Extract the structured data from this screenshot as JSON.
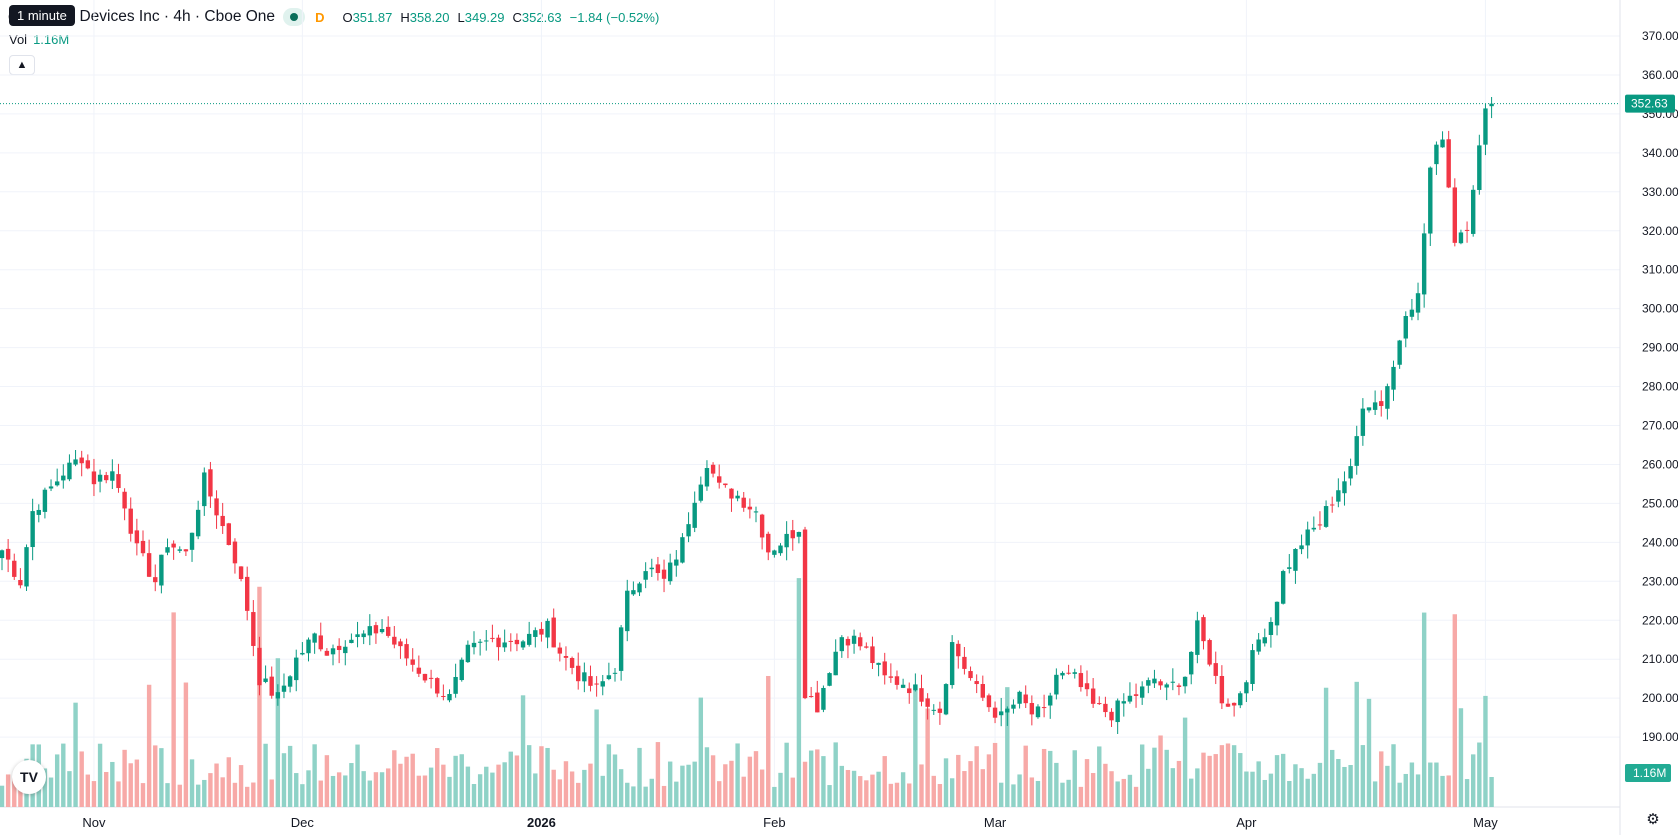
{
  "tooltip": "1 minute",
  "header": {
    "title": "ced Micro Devices Inc · 4h · Cboe One",
    "d_badge": "D",
    "open_label": "O",
    "open": "351.87",
    "high_label": "H",
    "high": "358.20",
    "low_label": "L",
    "low": "349.29",
    "close_label": "C",
    "close": "352.63",
    "change": "−1.84 (−0.52%)"
  },
  "volume": {
    "label": "Vol",
    "value": "1.16M"
  },
  "colors": {
    "up": "#089981",
    "down": "#f23645",
    "vol_up": "#8fd2c7",
    "vol_down": "#f7a9a7"
  },
  "icons": {
    "collapse": "chevron-up-icon",
    "logo": "tradingview-logo",
    "settings": "gear-icon"
  },
  "logo_text": "TV",
  "chart_data": {
    "type": "candlestick",
    "ylim": [
      180,
      375
    ],
    "y_ticks": [
      "370.00",
      "360.00",
      "350.00",
      "340.00",
      "330.00",
      "320.00",
      "310.00",
      "300.00",
      "290.00",
      "280.00",
      "270.00",
      "260.00",
      "250.00",
      "240.00",
      "230.00",
      "220.00",
      "210.00",
      "200.00",
      "190.00"
    ],
    "y_tick_values": [
      370,
      360,
      350,
      340,
      330,
      320,
      310,
      300,
      290,
      280,
      270,
      260,
      250,
      240,
      230,
      220,
      210,
      200,
      190
    ],
    "x_ticks": [
      {
        "label": "Nov",
        "index": 15,
        "bold": false
      },
      {
        "label": "Dec",
        "index": 49,
        "bold": false
      },
      {
        "label": "2026",
        "index": 88,
        "bold": true
      },
      {
        "label": "Feb",
        "index": 126,
        "bold": false
      },
      {
        "label": "Mar",
        "index": 162,
        "bold": false
      },
      {
        "label": "Apr",
        "index": 203,
        "bold": false
      },
      {
        "label": "May",
        "index": 242,
        "bold": false
      }
    ],
    "last_price": 352.63,
    "last_price_label": "352.63",
    "last_volume_label": "1.16M",
    "anchors": [
      [
        0,
        238
      ],
      [
        3,
        230
      ],
      [
        5,
        248
      ],
      [
        7,
        252
      ],
      [
        10,
        258
      ],
      [
        13,
        262
      ],
      [
        15,
        256
      ],
      [
        18,
        258
      ],
      [
        20,
        250
      ],
      [
        22,
        238
      ],
      [
        25,
        230
      ],
      [
        27,
        240
      ],
      [
        30,
        237
      ],
      [
        33,
        256
      ],
      [
        36,
        244
      ],
      [
        38,
        236
      ],
      [
        40,
        223
      ],
      [
        42,
        205
      ],
      [
        45,
        200
      ],
      [
        48,
        210
      ],
      [
        51,
        216
      ],
      [
        53,
        212
      ],
      [
        56,
        215
      ],
      [
        59,
        216
      ],
      [
        62,
        218
      ],
      [
        65,
        212
      ],
      [
        70,
        204
      ],
      [
        73,
        200
      ],
      [
        76,
        212
      ],
      [
        80,
        215
      ],
      [
        85,
        215
      ],
      [
        89,
        218
      ],
      [
        91,
        212
      ],
      [
        94,
        206
      ],
      [
        97,
        202
      ],
      [
        100,
        208
      ],
      [
        102,
        226
      ],
      [
        105,
        234
      ],
      [
        108,
        230
      ],
      [
        111,
        240
      ],
      [
        113,
        252
      ],
      [
        115,
        261
      ],
      [
        117,
        254
      ],
      [
        120,
        252
      ],
      [
        123,
        248
      ],
      [
        125,
        238
      ],
      [
        128,
        241
      ],
      [
        130,
        244
      ],
      [
        131,
        202
      ],
      [
        133,
        198
      ],
      [
        135,
        208
      ],
      [
        137,
        216
      ],
      [
        139,
        215
      ],
      [
        141,
        212
      ],
      [
        144,
        205
      ],
      [
        147,
        204
      ],
      [
        149,
        202
      ],
      [
        153,
        197
      ],
      [
        155,
        214
      ],
      [
        157,
        208
      ],
      [
        159,
        202
      ],
      [
        161,
        198
      ],
      [
        163,
        195
      ],
      [
        166,
        200
      ],
      [
        168,
        196
      ],
      [
        170,
        196
      ],
      [
        172,
        206
      ],
      [
        175,
        205
      ],
      [
        178,
        198
      ],
      [
        181,
        196
      ],
      [
        183,
        199
      ],
      [
        186,
        202
      ],
      [
        188,
        205
      ],
      [
        190,
        202
      ],
      [
        193,
        206
      ],
      [
        195,
        218
      ],
      [
        197,
        210
      ],
      [
        199,
        200
      ],
      [
        201,
        198
      ],
      [
        203,
        206
      ],
      [
        205,
        215
      ],
      [
        207,
        220
      ],
      [
        209,
        232
      ],
      [
        212,
        240
      ],
      [
        215,
        245
      ],
      [
        218,
        254
      ],
      [
        220,
        258
      ],
      [
        222,
        276
      ],
      [
        225,
        276
      ],
      [
        227,
        285
      ],
      [
        229,
        300
      ],
      [
        231,
        303
      ],
      [
        233,
        336
      ],
      [
        235,
        345
      ],
      [
        237,
        318
      ],
      [
        239,
        322
      ],
      [
        240,
        332
      ],
      [
        242,
        350
      ],
      [
        243,
        352.63
      ]
    ],
    "volume_ylim": [
      0,
      12
    ],
    "volume_note": "volume bars drawn as relative heights, latest bar 1.16M"
  }
}
